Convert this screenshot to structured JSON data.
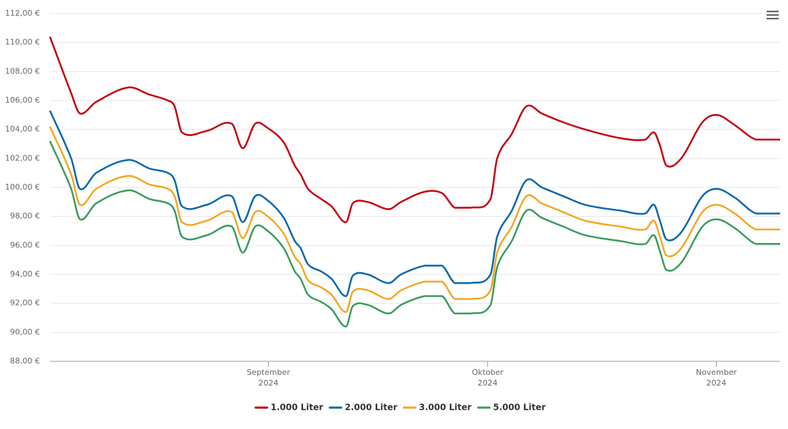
{
  "chart_data": {
    "type": "line",
    "x": [
      0,
      2.9,
      4.1,
      6.3,
      10.7,
      13.6,
      16.1,
      17.0,
      18.0,
      21.4,
      24.8,
      26.3,
      28.0,
      29.7,
      31.9,
      33.4,
      34.2,
      35.2,
      37.0,
      38.4,
      40.4,
      41.3,
      43.3,
      46.2,
      47.9,
      51.1,
      53.5,
      55.2,
      57.4,
      60.1,
      61.0,
      63.0,
      65.0,
      67.1,
      70.0,
      73.0,
      77.8,
      81.2,
      82.4,
      83.2,
      84.1,
      86.1,
      89.0,
      91.0,
      93.4,
      96.3,
      99.6
    ],
    "xlim": [
      0,
      99.6
    ],
    "xticks": [
      {
        "value": 29.8,
        "label": [
          "September",
          "2024"
        ]
      },
      {
        "value": 59.7,
        "label": [
          "Oktober",
          "2024"
        ]
      },
      {
        "value": 90.9,
        "label": [
          "November",
          "2024"
        ]
      }
    ],
    "ylim": [
      88,
      112
    ],
    "yticks": [
      {
        "value": 88,
        "label": "88,00 €"
      },
      {
        "value": 90,
        "label": "90,00 €"
      },
      {
        "value": 92,
        "label": "92,00 €"
      },
      {
        "value": 94,
        "label": "94,00 €"
      },
      {
        "value": 96,
        "label": "96,00 €"
      },
      {
        "value": 98,
        "label": "98,00 €"
      },
      {
        "value": 100,
        "label": "100,00 €"
      },
      {
        "value": 102,
        "label": "102,00 €"
      },
      {
        "value": 104,
        "label": "104,00 €"
      },
      {
        "value": 106,
        "label": "106,00 €"
      },
      {
        "value": 108,
        "label": "108,00 €"
      },
      {
        "value": 110,
        "label": "110,00 €"
      },
      {
        "value": 112,
        "label": "112,00 €"
      }
    ],
    "grid": true,
    "legend": "bottom",
    "series": [
      {
        "name": "1.000 Liter",
        "color": "#c4000b",
        "values": [
          110.4,
          106.5,
          105.1,
          105.9,
          106.9,
          106.4,
          106.0,
          105.6,
          103.8,
          103.9,
          104.4,
          102.7,
          104.4,
          104.1,
          103.1,
          101.5,
          100.9,
          99.9,
          99.2,
          98.7,
          97.6,
          98.9,
          99.0,
          98.5,
          99.0,
          99.7,
          99.6,
          98.6,
          98.6,
          99.2,
          102.0,
          103.7,
          105.6,
          105.1,
          104.5,
          104.0,
          103.4,
          103.3,
          103.8,
          102.9,
          101.5,
          102.0,
          104.5,
          105.0,
          104.3,
          103.3,
          103.3
        ]
      },
      {
        "name": "2.000 Liter",
        "color": "#0867ab",
        "values": [
          105.3,
          102.0,
          99.9,
          101.0,
          101.9,
          101.3,
          101.0,
          100.5,
          98.7,
          98.8,
          99.4,
          97.6,
          99.4,
          99.1,
          97.9,
          96.3,
          95.8,
          94.7,
          94.2,
          93.7,
          92.5,
          93.9,
          94.0,
          93.4,
          94.0,
          94.6,
          94.6,
          93.4,
          93.4,
          94.0,
          96.6,
          98.4,
          100.5,
          100.0,
          99.4,
          98.8,
          98.4,
          98.2,
          98.8,
          97.7,
          96.4,
          96.9,
          99.4,
          99.9,
          99.3,
          98.2,
          98.2
        ]
      },
      {
        "name": "3.000 Liter",
        "color": "#f5a623",
        "values": [
          104.2,
          100.9,
          98.8,
          99.9,
          100.8,
          100.2,
          99.9,
          99.4,
          97.6,
          97.7,
          98.3,
          96.5,
          98.3,
          98.0,
          96.8,
          95.2,
          94.7,
          93.6,
          93.1,
          92.6,
          91.4,
          92.8,
          92.9,
          92.3,
          92.9,
          93.5,
          93.5,
          92.3,
          92.3,
          92.9,
          95.5,
          97.3,
          99.4,
          98.9,
          98.3,
          97.7,
          97.3,
          97.1,
          97.7,
          96.6,
          95.3,
          95.8,
          98.3,
          98.8,
          98.2,
          97.1,
          97.1
        ]
      },
      {
        "name": "5.000 Liter",
        "color": "#3a9b5f",
        "values": [
          103.2,
          99.9,
          97.8,
          98.9,
          99.8,
          99.2,
          98.9,
          98.4,
          96.6,
          96.7,
          97.3,
          95.5,
          97.3,
          97.0,
          95.8,
          94.2,
          93.7,
          92.6,
          92.1,
          91.6,
          90.4,
          91.8,
          91.9,
          91.3,
          91.9,
          92.5,
          92.5,
          91.3,
          91.3,
          91.9,
          94.5,
          96.3,
          98.4,
          97.9,
          97.3,
          96.7,
          96.3,
          96.1,
          96.7,
          95.6,
          94.3,
          94.8,
          97.3,
          97.8,
          97.2,
          96.1,
          96.1
        ]
      }
    ]
  }
}
